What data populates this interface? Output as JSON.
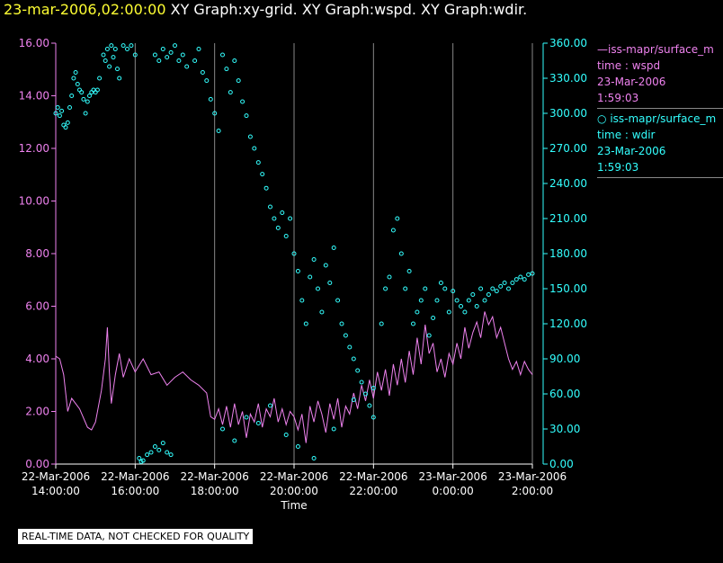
{
  "header": {
    "timestamp": "23-mar-2006,02:00:00",
    "graphs": "XY Graph:xy-grid.  XY Graph:wspd.  XY Graph:wdir."
  },
  "legend": {
    "series": [
      {
        "symbol": "—",
        "name": "iss-mapr/surface_m",
        "var": "time : wspd",
        "date": "23-Mar-2006",
        "time": "1:59:03",
        "color": "#ee82ee"
      },
      {
        "symbol": "○",
        "name": "iss-mapr/surface_m",
        "var": "time : wdir",
        "date": "23-Mar-2006",
        "time": "1:59:03",
        "color": "#33ffff"
      }
    ]
  },
  "footer_note": "REAL-TIME DATA, NOT CHECKED FOR QUALITY",
  "chart_data": {
    "type": "line",
    "xlabel": "Time",
    "x_ticks": [
      {
        "date": "22-Mar-2006",
        "time": "14:00:00",
        "hour": 0
      },
      {
        "date": "22-Mar-2006",
        "time": "16:00:00",
        "hour": 2
      },
      {
        "date": "22-Mar-2006",
        "time": "18:00:00",
        "hour": 4
      },
      {
        "date": "22-Mar-2006",
        "time": "20:00:00",
        "hour": 6
      },
      {
        "date": "22-Mar-2006",
        "time": "22:00:00",
        "hour": 8
      },
      {
        "date": "23-Mar-2006",
        "time": "0:00:00",
        "hour": 10
      },
      {
        "date": "23-Mar-2006",
        "time": "2:00:00",
        "hour": 12
      }
    ],
    "xlim": [
      0,
      12
    ],
    "left_axis": {
      "ylim": [
        0,
        16
      ],
      "ticks": [
        "0.00",
        "2.00",
        "4.00",
        "6.00",
        "8.00",
        "10.00",
        "12.00",
        "14.00",
        "16.00"
      ],
      "color": "#ee82ee"
    },
    "right_axis": {
      "ylim": [
        0,
        360
      ],
      "ticks": [
        "0.00",
        "30.00",
        "60.00",
        "90.00",
        "120.00",
        "150.00",
        "180.00",
        "210.00",
        "240.00",
        "270.00",
        "300.00",
        "330.00",
        "360.00"
      ],
      "color": "#33ffff"
    },
    "grid": "vertical",
    "series": [
      {
        "name": "time : wspd",
        "axis": "left",
        "style": "line",
        "color": "#ee82ee",
        "points": [
          [
            0,
            4.1
          ],
          [
            0.1,
            4.0
          ],
          [
            0.2,
            3.4
          ],
          [
            0.3,
            2.0
          ],
          [
            0.4,
            2.5
          ],
          [
            0.6,
            2.1
          ],
          [
            0.8,
            1.4
          ],
          [
            0.9,
            1.3
          ],
          [
            1.0,
            1.6
          ],
          [
            1.15,
            2.8
          ],
          [
            1.25,
            4.0
          ],
          [
            1.3,
            5.2
          ],
          [
            1.35,
            3.5
          ],
          [
            1.4,
            2.3
          ],
          [
            1.5,
            3.4
          ],
          [
            1.6,
            4.2
          ],
          [
            1.7,
            3.3
          ],
          [
            1.85,
            4.0
          ],
          [
            2.0,
            3.5
          ],
          [
            2.2,
            4.0
          ],
          [
            2.4,
            3.4
          ],
          [
            2.6,
            3.5
          ],
          [
            2.8,
            3.0
          ],
          [
            3.0,
            3.3
          ],
          [
            3.2,
            3.5
          ],
          [
            3.4,
            3.2
          ],
          [
            3.6,
            3.0
          ],
          [
            3.8,
            2.7
          ],
          [
            3.9,
            1.8
          ],
          [
            4.0,
            1.7
          ],
          [
            4.1,
            2.1
          ],
          [
            4.2,
            1.5
          ],
          [
            4.3,
            2.2
          ],
          [
            4.4,
            1.4
          ],
          [
            4.5,
            2.3
          ],
          [
            4.6,
            1.5
          ],
          [
            4.7,
            2.0
          ],
          [
            4.8,
            1.0
          ],
          [
            4.9,
            1.9
          ],
          [
            5.0,
            1.6
          ],
          [
            5.1,
            2.3
          ],
          [
            5.2,
            1.4
          ],
          [
            5.3,
            2.1
          ],
          [
            5.4,
            1.8
          ],
          [
            5.5,
            2.5
          ],
          [
            5.6,
            1.6
          ],
          [
            5.7,
            2.1
          ],
          [
            5.8,
            1.5
          ],
          [
            5.9,
            2.0
          ],
          [
            6.0,
            1.8
          ],
          [
            6.1,
            1.3
          ],
          [
            6.2,
            1.9
          ],
          [
            6.3,
            0.8
          ],
          [
            6.4,
            2.2
          ],
          [
            6.5,
            1.6
          ],
          [
            6.6,
            2.4
          ],
          [
            6.7,
            1.9
          ],
          [
            6.8,
            1.2
          ],
          [
            6.9,
            2.3
          ],
          [
            7.0,
            1.7
          ],
          [
            7.1,
            2.5
          ],
          [
            7.2,
            1.4
          ],
          [
            7.3,
            2.2
          ],
          [
            7.4,
            1.9
          ],
          [
            7.5,
            2.7
          ],
          [
            7.6,
            2.1
          ],
          [
            7.7,
            3.0
          ],
          [
            7.8,
            2.4
          ],
          [
            7.9,
            3.2
          ],
          [
            8.0,
            2.5
          ],
          [
            8.1,
            3.5
          ],
          [
            8.2,
            2.8
          ],
          [
            8.3,
            3.6
          ],
          [
            8.4,
            2.6
          ],
          [
            8.5,
            3.8
          ],
          [
            8.6,
            3.0
          ],
          [
            8.7,
            4.0
          ],
          [
            8.8,
            3.1
          ],
          [
            8.9,
            4.3
          ],
          [
            9.0,
            3.4
          ],
          [
            9.1,
            4.8
          ],
          [
            9.2,
            3.8
          ],
          [
            9.3,
            5.3
          ],
          [
            9.4,
            4.2
          ],
          [
            9.5,
            4.6
          ],
          [
            9.6,
            3.5
          ],
          [
            9.7,
            4.0
          ],
          [
            9.8,
            3.3
          ],
          [
            9.9,
            4.2
          ],
          [
            10.0,
            3.8
          ],
          [
            10.1,
            4.6
          ],
          [
            10.2,
            4.0
          ],
          [
            10.3,
            5.2
          ],
          [
            10.4,
            4.4
          ],
          [
            10.5,
            5.0
          ],
          [
            10.6,
            5.4
          ],
          [
            10.7,
            4.8
          ],
          [
            10.8,
            5.8
          ],
          [
            10.9,
            5.3
          ],
          [
            11.0,
            5.6
          ],
          [
            11.1,
            4.8
          ],
          [
            11.2,
            5.2
          ],
          [
            11.3,
            4.6
          ],
          [
            11.4,
            4.0
          ],
          [
            11.5,
            3.6
          ],
          [
            11.6,
            3.9
          ],
          [
            11.7,
            3.4
          ],
          [
            11.8,
            3.9
          ],
          [
            11.9,
            3.6
          ],
          [
            12.0,
            3.4
          ]
        ]
      },
      {
        "name": "time : wdir",
        "axis": "right",
        "style": "scatter",
        "color": "#33ffff",
        "points": [
          [
            0.0,
            300
          ],
          [
            0.05,
            305
          ],
          [
            0.1,
            298
          ],
          [
            0.15,
            302
          ],
          [
            0.2,
            290
          ],
          [
            0.25,
            288
          ],
          [
            0.3,
            292
          ],
          [
            0.35,
            305
          ],
          [
            0.4,
            315
          ],
          [
            0.45,
            330
          ],
          [
            0.5,
            335
          ],
          [
            0.55,
            325
          ],
          [
            0.6,
            320
          ],
          [
            0.65,
            318
          ],
          [
            0.7,
            312
          ],
          [
            0.75,
            300
          ],
          [
            0.8,
            310
          ],
          [
            0.85,
            315
          ],
          [
            0.9,
            318
          ],
          [
            0.95,
            320
          ],
          [
            1.0,
            318
          ],
          [
            1.05,
            320
          ],
          [
            1.1,
            330
          ],
          [
            1.2,
            350
          ],
          [
            1.25,
            345
          ],
          [
            1.3,
            355
          ],
          [
            1.35,
            340
          ],
          [
            1.4,
            358
          ],
          [
            1.45,
            348
          ],
          [
            1.5,
            355
          ],
          [
            1.55,
            338
          ],
          [
            1.6,
            330
          ],
          [
            1.7,
            358
          ],
          [
            1.8,
            355
          ],
          [
            1.9,
            358
          ],
          [
            2.0,
            350
          ],
          [
            2.1,
            5
          ],
          [
            2.15,
            2
          ],
          [
            2.2,
            3
          ],
          [
            2.3,
            8
          ],
          [
            2.4,
            10
          ],
          [
            2.5,
            15
          ],
          [
            2.6,
            12
          ],
          [
            2.7,
            18
          ],
          [
            2.8,
            10
          ],
          [
            2.9,
            8
          ],
          [
            2.5,
            350
          ],
          [
            2.6,
            345
          ],
          [
            2.7,
            355
          ],
          [
            2.8,
            348
          ],
          [
            2.9,
            352
          ],
          [
            3.0,
            358
          ],
          [
            3.1,
            345
          ],
          [
            3.2,
            350
          ],
          [
            3.3,
            340
          ],
          [
            3.5,
            345
          ],
          [
            3.6,
            355
          ],
          [
            3.7,
            335
          ],
          [
            3.8,
            328
          ],
          [
            3.9,
            312
          ],
          [
            4.0,
            300
          ],
          [
            4.1,
            285
          ],
          [
            4.2,
            350
          ],
          [
            4.3,
            338
          ],
          [
            4.4,
            318
          ],
          [
            4.5,
            345
          ],
          [
            4.6,
            328
          ],
          [
            4.7,
            310
          ],
          [
            4.8,
            298
          ],
          [
            4.9,
            280
          ],
          [
            5.0,
            270
          ],
          [
            5.1,
            258
          ],
          [
            5.2,
            248
          ],
          [
            5.3,
            236
          ],
          [
            5.4,
            220
          ],
          [
            5.5,
            210
          ],
          [
            5.6,
            202
          ],
          [
            5.7,
            215
          ],
          [
            5.8,
            195
          ],
          [
            5.9,
            210
          ],
          [
            6.0,
            180
          ],
          [
            6.1,
            165
          ],
          [
            6.2,
            140
          ],
          [
            6.3,
            120
          ],
          [
            6.4,
            160
          ],
          [
            6.5,
            175
          ],
          [
            6.6,
            150
          ],
          [
            6.7,
            130
          ],
          [
            6.8,
            170
          ],
          [
            6.9,
            155
          ],
          [
            7.0,
            185
          ],
          [
            7.1,
            140
          ],
          [
            7.2,
            120
          ],
          [
            7.3,
            110
          ],
          [
            7.4,
            100
          ],
          [
            7.5,
            90
          ],
          [
            7.6,
            80
          ],
          [
            7.7,
            70
          ],
          [
            7.8,
            60
          ],
          [
            7.9,
            50
          ],
          [
            8.0,
            40
          ],
          [
            4.2,
            30
          ],
          [
            4.5,
            20
          ],
          [
            4.8,
            40
          ],
          [
            5.1,
            35
          ],
          [
            5.4,
            50
          ],
          [
            5.8,
            25
          ],
          [
            6.1,
            15
          ],
          [
            6.5,
            5
          ],
          [
            7.0,
            30
          ],
          [
            7.5,
            55
          ],
          [
            8.0,
            65
          ],
          [
            8.2,
            120
          ],
          [
            8.3,
            150
          ],
          [
            8.4,
            160
          ],
          [
            8.5,
            200
          ],
          [
            8.6,
            210
          ],
          [
            8.7,
            180
          ],
          [
            8.8,
            150
          ],
          [
            8.9,
            165
          ],
          [
            9.0,
            120
          ],
          [
            9.1,
            130
          ],
          [
            9.2,
            140
          ],
          [
            9.3,
            150
          ],
          [
            9.4,
            110
          ],
          [
            9.5,
            125
          ],
          [
            9.6,
            140
          ],
          [
            9.7,
            155
          ],
          [
            9.8,
            150
          ],
          [
            9.9,
            130
          ],
          [
            10.0,
            148
          ],
          [
            10.1,
            140
          ],
          [
            10.2,
            135
          ],
          [
            10.3,
            130
          ],
          [
            10.4,
            140
          ],
          [
            10.5,
            145
          ],
          [
            10.6,
            135
          ],
          [
            10.7,
            150
          ],
          [
            10.8,
            140
          ],
          [
            10.9,
            145
          ],
          [
            11.0,
            150
          ],
          [
            11.1,
            148
          ],
          [
            11.2,
            152
          ],
          [
            11.3,
            155
          ],
          [
            11.4,
            150
          ],
          [
            11.5,
            155
          ],
          [
            11.6,
            158
          ],
          [
            11.7,
            160
          ],
          [
            11.8,
            158
          ],
          [
            11.9,
            162
          ],
          [
            12.0,
            163
          ]
        ]
      }
    ]
  }
}
